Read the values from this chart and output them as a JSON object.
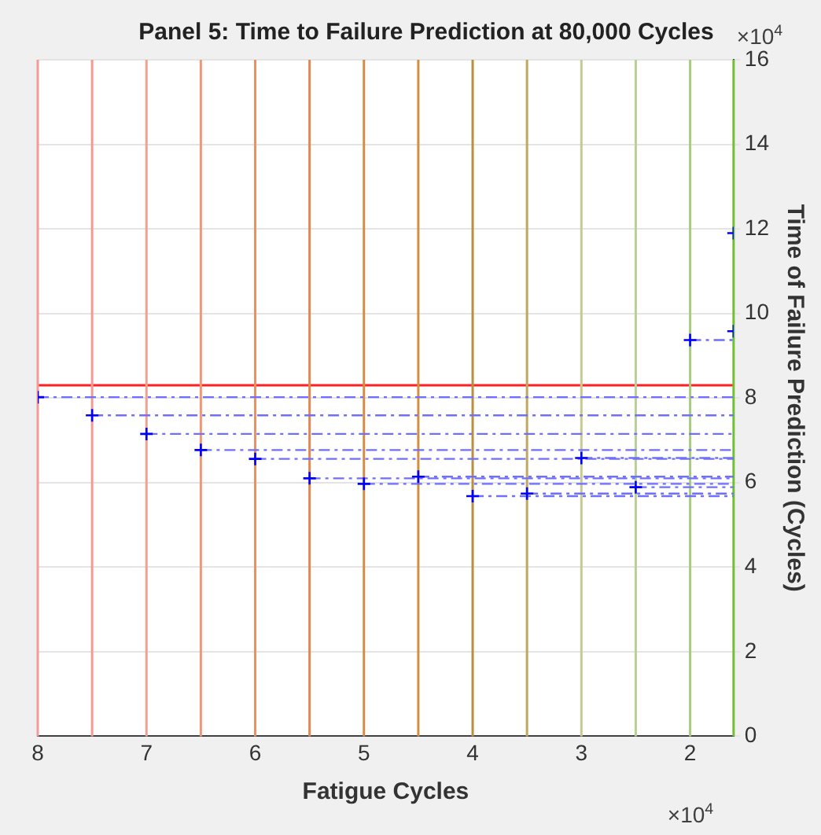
{
  "chart_data": {
    "type": "scatter",
    "title": "Panel 5: Time to Failure Prediction at 80,000 Cycles",
    "xlabel": "Fatigue Cycles",
    "ylabel": "Time of Failure Prediction (Cycles)",
    "annotations": [
      "×10$^{4}$",
      "×10$^{4}$"
    ],
    "xlim": [
      8,
      1.6
    ],
    "xticks": [
      8,
      7,
      6,
      5,
      4,
      3,
      2
    ],
    "ylim": [
      0,
      16
    ],
    "yticks": [
      0,
      2,
      4,
      6,
      8,
      10,
      12,
      14,
      16
    ],
    "grid": "y",
    "legend": false,
    "ref_lines": [
      {
        "axis": "y",
        "value": 8.3,
        "color": "#ff2020"
      },
      {
        "axis": "x",
        "value": 8,
        "color": "#f49a9a"
      },
      {
        "axis": "x",
        "value": 7.5,
        "color": "#f29a92"
      },
      {
        "axis": "x",
        "value": 7,
        "color": "#f0a090"
      },
      {
        "axis": "x",
        "value": 6.5,
        "color": "#ee9878"
      },
      {
        "axis": "x",
        "value": 6,
        "color": "#eb9060"
      },
      {
        "axis": "x",
        "value": 5.5,
        "color": "#e08850"
      },
      {
        "axis": "x",
        "value": 5,
        "color": "#d88a40"
      },
      {
        "axis": "x",
        "value": 4.5,
        "color": "#d09040"
      },
      {
        "axis": "x",
        "value": 4,
        "color": "#b89040"
      },
      {
        "axis": "x",
        "value": 3.5,
        "color": "#c0a860"
      },
      {
        "axis": "x",
        "value": 3,
        "color": "#c8c890"
      },
      {
        "axis": "x",
        "value": 2.5,
        "color": "#b8d098"
      },
      {
        "axis": "x",
        "value": 2,
        "color": "#a8cc80"
      },
      {
        "axis": "x",
        "value": 1.6,
        "color": "#70c030"
      }
    ],
    "series": [
      {
        "type": "scatter",
        "color": "#0000ff",
        "marker": "cross",
        "x": [
          8,
          7.5,
          7,
          6.5,
          6,
          5.5,
          5,
          4.5,
          4,
          3.5,
          3,
          2.5,
          2,
          1.6,
          1.6
        ],
        "values": [
          8.02,
          7.59,
          7.15,
          6.77,
          6.56,
          6.1,
          5.97,
          6.14,
          5.68,
          5.74,
          6.58,
          5.89,
          9.37,
          9.58,
          11.9
        ]
      },
      {
        "type": "line",
        "color": "#6f6fff",
        "marker": "none",
        "line_style": "dashed",
        "x": [
          8,
          1.6
        ],
        "values": [
          8.02,
          8.02
        ]
      },
      {
        "type": "line",
        "color": "#6f6fff",
        "marker": "none",
        "line_style": "dashed",
        "x": [
          7.5,
          1.6
        ],
        "values": [
          7.59,
          7.59
        ]
      },
      {
        "type": "line",
        "color": "#6f6fff",
        "marker": "none",
        "line_style": "dashed",
        "x": [
          7,
          1.6
        ],
        "values": [
          7.15,
          7.15
        ]
      },
      {
        "type": "line",
        "color": "#6f6fff",
        "marker": "none",
        "line_style": "dashed",
        "x": [
          6.5,
          1.6
        ],
        "values": [
          6.77,
          6.77
        ]
      },
      {
        "type": "line",
        "color": "#6f6fff",
        "marker": "none",
        "line_style": "dashed",
        "x": [
          6,
          1.6
        ],
        "values": [
          6.56,
          6.56
        ]
      },
      {
        "type": "line",
        "color": "#6f6fff",
        "marker": "none",
        "line_style": "dashed",
        "x": [
          5.5,
          1.6
        ],
        "values": [
          6.1,
          6.1
        ]
      },
      {
        "type": "line",
        "color": "#6f6fff",
        "marker": "none",
        "line_style": "dashed",
        "x": [
          5,
          1.6
        ],
        "values": [
          5.97,
          5.97
        ]
      },
      {
        "type": "line",
        "color": "#6f6fff",
        "marker": "none",
        "line_style": "dashed",
        "x": [
          4.5,
          1.6
        ],
        "values": [
          6.14,
          6.14
        ]
      },
      {
        "type": "line",
        "color": "#6f6fff",
        "marker": "none",
        "line_style": "dashed",
        "x": [
          4,
          1.6
        ],
        "values": [
          5.68,
          5.68
        ]
      },
      {
        "type": "line",
        "color": "#6f6fff",
        "marker": "none",
        "line_style": "dashed",
        "x": [
          3.5,
          1.6
        ],
        "values": [
          5.74,
          5.74
        ]
      },
      {
        "type": "line",
        "color": "#6f6fff",
        "marker": "none",
        "line_style": "dashed",
        "x": [
          3,
          1.6
        ],
        "values": [
          6.58,
          6.58
        ]
      },
      {
        "type": "line",
        "color": "#6f6fff",
        "marker": "none",
        "line_style": "dashed",
        "x": [
          2.5,
          1.6
        ],
        "values": [
          5.89,
          5.89
        ]
      },
      {
        "type": "line",
        "color": "#6f6fff",
        "marker": "none",
        "line_style": "dashed",
        "x": [
          2,
          1.6
        ],
        "values": [
          9.37,
          9.37
        ]
      }
    ]
  }
}
